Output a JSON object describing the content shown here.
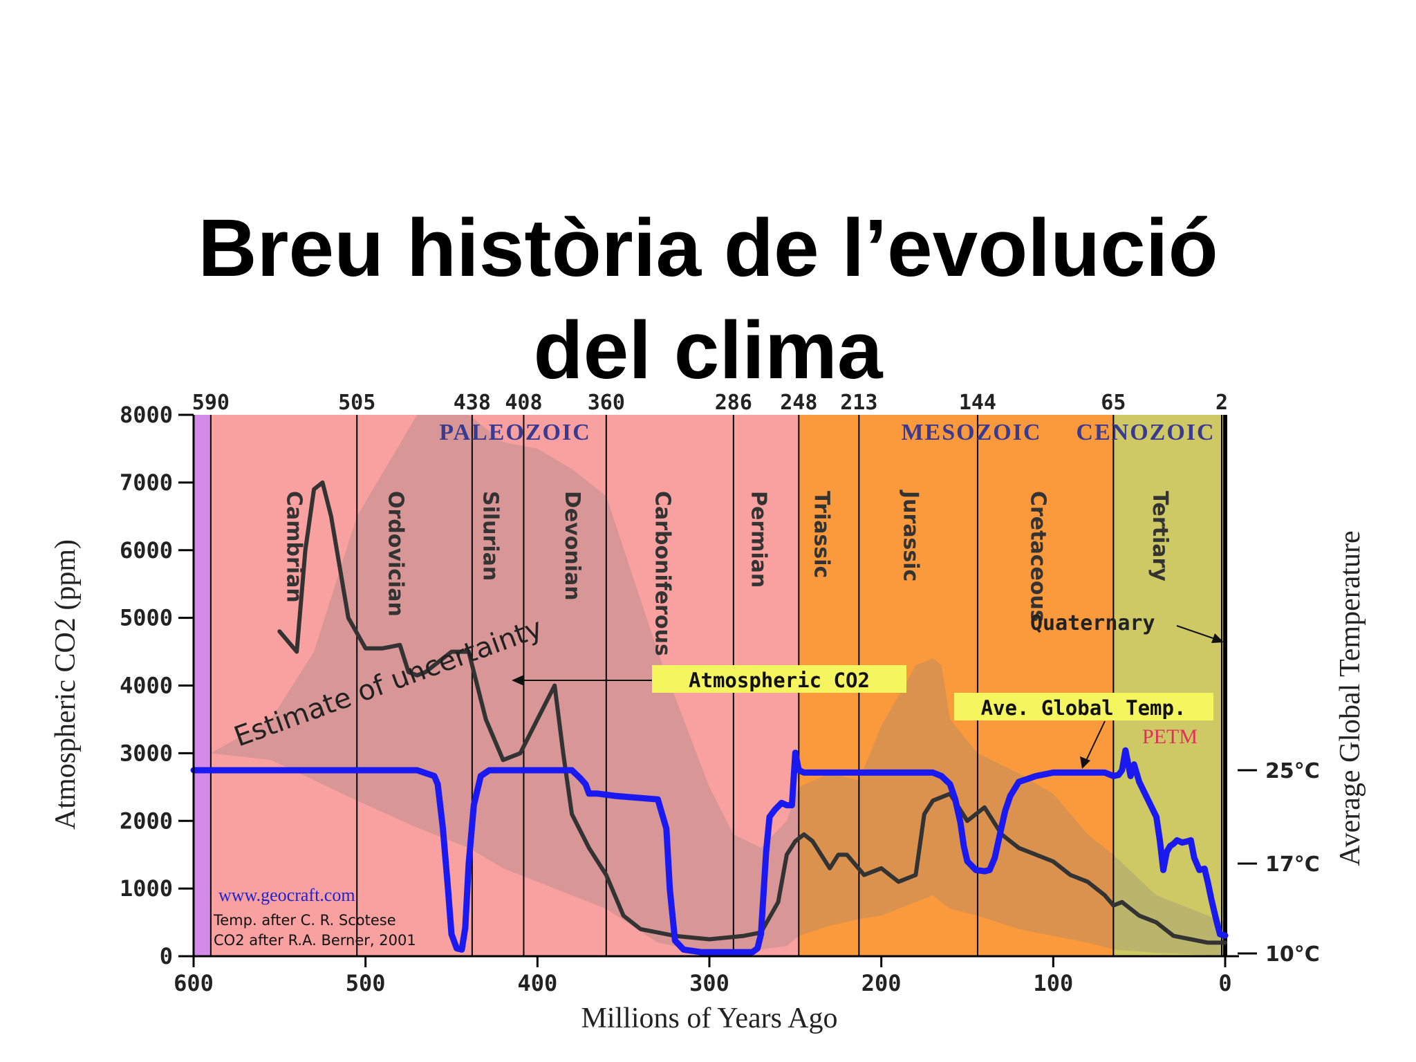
{
  "title_lines": [
    "Breu història de l’evolució",
    "del clima"
  ],
  "chart_data": {
    "type": "line",
    "xlabel": "Millions of Years Ago",
    "ylabel_left": "Atmospheric CO2 (ppm)",
    "ylabel_right": "Average Global Temperature",
    "xlim": [
      600,
      0
    ],
    "ylim": [
      0,
      8000
    ],
    "x_ticks": [
      600,
      500,
      400,
      300,
      200,
      100,
      0
    ],
    "y_ticks": [
      0,
      1000,
      2000,
      3000,
      4000,
      5000,
      6000,
      7000,
      8000
    ],
    "temp_ticks": [
      {
        "label": "25°C",
        "value": 25
      },
      {
        "label": "17°C",
        "value": 17
      },
      {
        "label": "10°C",
        "value": 10
      }
    ],
    "boundaries_mya": [
      590,
      505,
      438,
      408,
      360,
      286,
      248,
      213,
      144,
      65,
      2
    ],
    "eras": [
      {
        "name": "PALEOZOIC",
        "start": 590,
        "end": 248,
        "color": "#f9a0a0"
      },
      {
        "name": "MESOZOIC",
        "start": 248,
        "end": 65,
        "color": "#fb9a3c"
      },
      {
        "name": "CENOZOIC",
        "start": 65,
        "end": 0,
        "color": "#cfc965"
      }
    ],
    "precambrian_color": "#d48ae8",
    "periods": [
      {
        "name": "Cambrian",
        "start": 590,
        "end": 505
      },
      {
        "name": "Ordovician",
        "start": 505,
        "end": 438
      },
      {
        "name": "Silurian",
        "start": 438,
        "end": 408
      },
      {
        "name": "Devonian",
        "start": 408,
        "end": 360
      },
      {
        "name": "Carboniferous",
        "start": 360,
        "end": 286
      },
      {
        "name": "Permian",
        "start": 286,
        "end": 248
      },
      {
        "name": "Triassic",
        "start": 248,
        "end": 213
      },
      {
        "name": "Jurassic",
        "start": 213,
        "end": 144
      },
      {
        "name": "Cretaceous",
        "start": 144,
        "end": 65
      },
      {
        "name": "Tertiary",
        "start": 65,
        "end": 2
      }
    ],
    "series": [
      {
        "name": "Atmospheric CO2",
        "color": "#333333",
        "x": [
          550,
          540,
          535,
          530,
          525,
          520,
          510,
          500,
          490,
          480,
          475,
          470,
          465,
          455,
          450,
          440,
          435,
          430,
          420,
          410,
          400,
          390,
          385,
          380,
          370,
          360,
          350,
          340,
          320,
          300,
          280,
          270,
          260,
          255,
          250,
          245,
          240,
          230,
          225,
          220,
          210,
          200,
          190,
          180,
          175,
          170,
          160,
          150,
          140,
          130,
          120,
          110,
          100,
          90,
          80,
          70,
          65,
          60,
          50,
          40,
          30,
          20,
          10,
          5,
          0
        ],
        "values": [
          4800,
          4500,
          6000,
          6900,
          7000,
          6500,
          5000,
          4550,
          4550,
          4600,
          4200,
          4150,
          4200,
          4400,
          4500,
          4500,
          4000,
          3500,
          2900,
          3000,
          3500,
          4000,
          3000,
          2100,
          1600,
          1200,
          600,
          400,
          300,
          250,
          300,
          350,
          800,
          1500,
          1700,
          1800,
          1700,
          1300,
          1500,
          1500,
          1200,
          1300,
          1100,
          1200,
          2100,
          2300,
          2400,
          2000,
          2200,
          1800,
          1600,
          1500,
          1400,
          1200,
          1100,
          900,
          750,
          800,
          600,
          500,
          300,
          250,
          200,
          200,
          200
        ]
      },
      {
        "name": "Ave. Global Temp.",
        "color": "#1a1af0",
        "x": [
          600,
          590,
          560,
          520,
          480,
          470,
          460,
          458,
          455,
          452,
          450,
          447,
          444,
          442,
          440,
          437,
          433,
          428,
          420,
          400,
          380,
          375,
          372,
          370,
          365,
          355,
          330,
          325,
          323,
          320,
          315,
          305,
          295,
          275,
          272,
          270,
          267,
          265,
          262,
          258,
          255,
          252,
          250,
          248,
          245,
          240,
          230,
          220,
          200,
          170,
          165,
          160,
          157,
          154,
          152,
          150,
          145,
          140,
          137,
          134,
          131,
          128,
          125,
          120,
          110,
          100,
          90,
          70,
          65,
          62,
          60,
          58,
          55,
          53,
          50,
          45,
          40,
          38,
          36,
          34,
          32,
          30,
          28,
          25,
          22,
          20,
          18,
          15,
          12,
          10,
          8,
          5,
          3,
          0
        ],
        "values": [
          25,
          25,
          25,
          25,
          25,
          25,
          24.5,
          23.8,
          20,
          15,
          11.5,
          10.4,
          10.3,
          12,
          17,
          22,
          24.5,
          25,
          25,
          25,
          25,
          24.3,
          23.8,
          23,
          23,
          22.8,
          22.5,
          20,
          15,
          11,
          10.3,
          10.1,
          10.1,
          10.1,
          10.4,
          11.5,
          18,
          21,
          21.6,
          22.2,
          22,
          22,
          26.5,
          25,
          24.8,
          24.8,
          24.8,
          24.8,
          24.8,
          24.8,
          24.5,
          23.8,
          22.5,
          20.5,
          18.5,
          17.2,
          16.5,
          16.4,
          16.5,
          17.5,
          19.5,
          21.5,
          22.8,
          24,
          24.5,
          24.8,
          24.8,
          24.8,
          24.5,
          24.6,
          25,
          26.7,
          24.5,
          25.5,
          24,
          22.5,
          21,
          19,
          16.5,
          18,
          18.5,
          18.7,
          19,
          18.8,
          18.9,
          19,
          17.5,
          16.5,
          16.6,
          15.5,
          14.2,
          12.5,
          11.5,
          11.4
        ]
      }
    ],
    "uncertainty_band": {
      "x": [
        590,
        555,
        530,
        505,
        470,
        440,
        420,
        400,
        380,
        360,
        330,
        300,
        286,
        270,
        255,
        248,
        230,
        213,
        200,
        180,
        170,
        165,
        160,
        144,
        120,
        100,
        80,
        65,
        40,
        20,
        0
      ],
      "upper": [
        3000,
        3500,
        4500,
        6500,
        8000,
        8000,
        7600,
        7500,
        7200,
        6800,
        4500,
        2500,
        1800,
        1600,
        2000,
        2500,
        2700,
        2600,
        3400,
        4300,
        4400,
        4300,
        3500,
        3000,
        2700,
        2400,
        1800,
        1500,
        900,
        700,
        500
      ],
      "lower": [
        3000,
        2900,
        2600,
        2300,
        1900,
        1600,
        1300,
        1100,
        900,
        700,
        200,
        50,
        80,
        100,
        150,
        300,
        450,
        550,
        600,
        800,
        900,
        800,
        700,
        600,
        400,
        300,
        200,
        100,
        50,
        30,
        0
      ]
    },
    "annotations": {
      "uncertainty_label": "Estimate of uncertainty",
      "co2_callout": "Atmospheric CO2",
      "temp_callout": "Ave. Global Temp.",
      "quaternary_label": "Quaternary",
      "petm_label": "PETM",
      "credit_url": "www.geocraft.com",
      "credit_temp": "Temp. after C. R. Scotese",
      "credit_co2": "CO2 after R.A. Berner, 2001"
    },
    "colors": {
      "axis": "#000000",
      "callout_bg": "#f5f560",
      "petm": "#e0305a",
      "era_text": "#3a3a90",
      "credit_url": "#2222cc"
    }
  }
}
